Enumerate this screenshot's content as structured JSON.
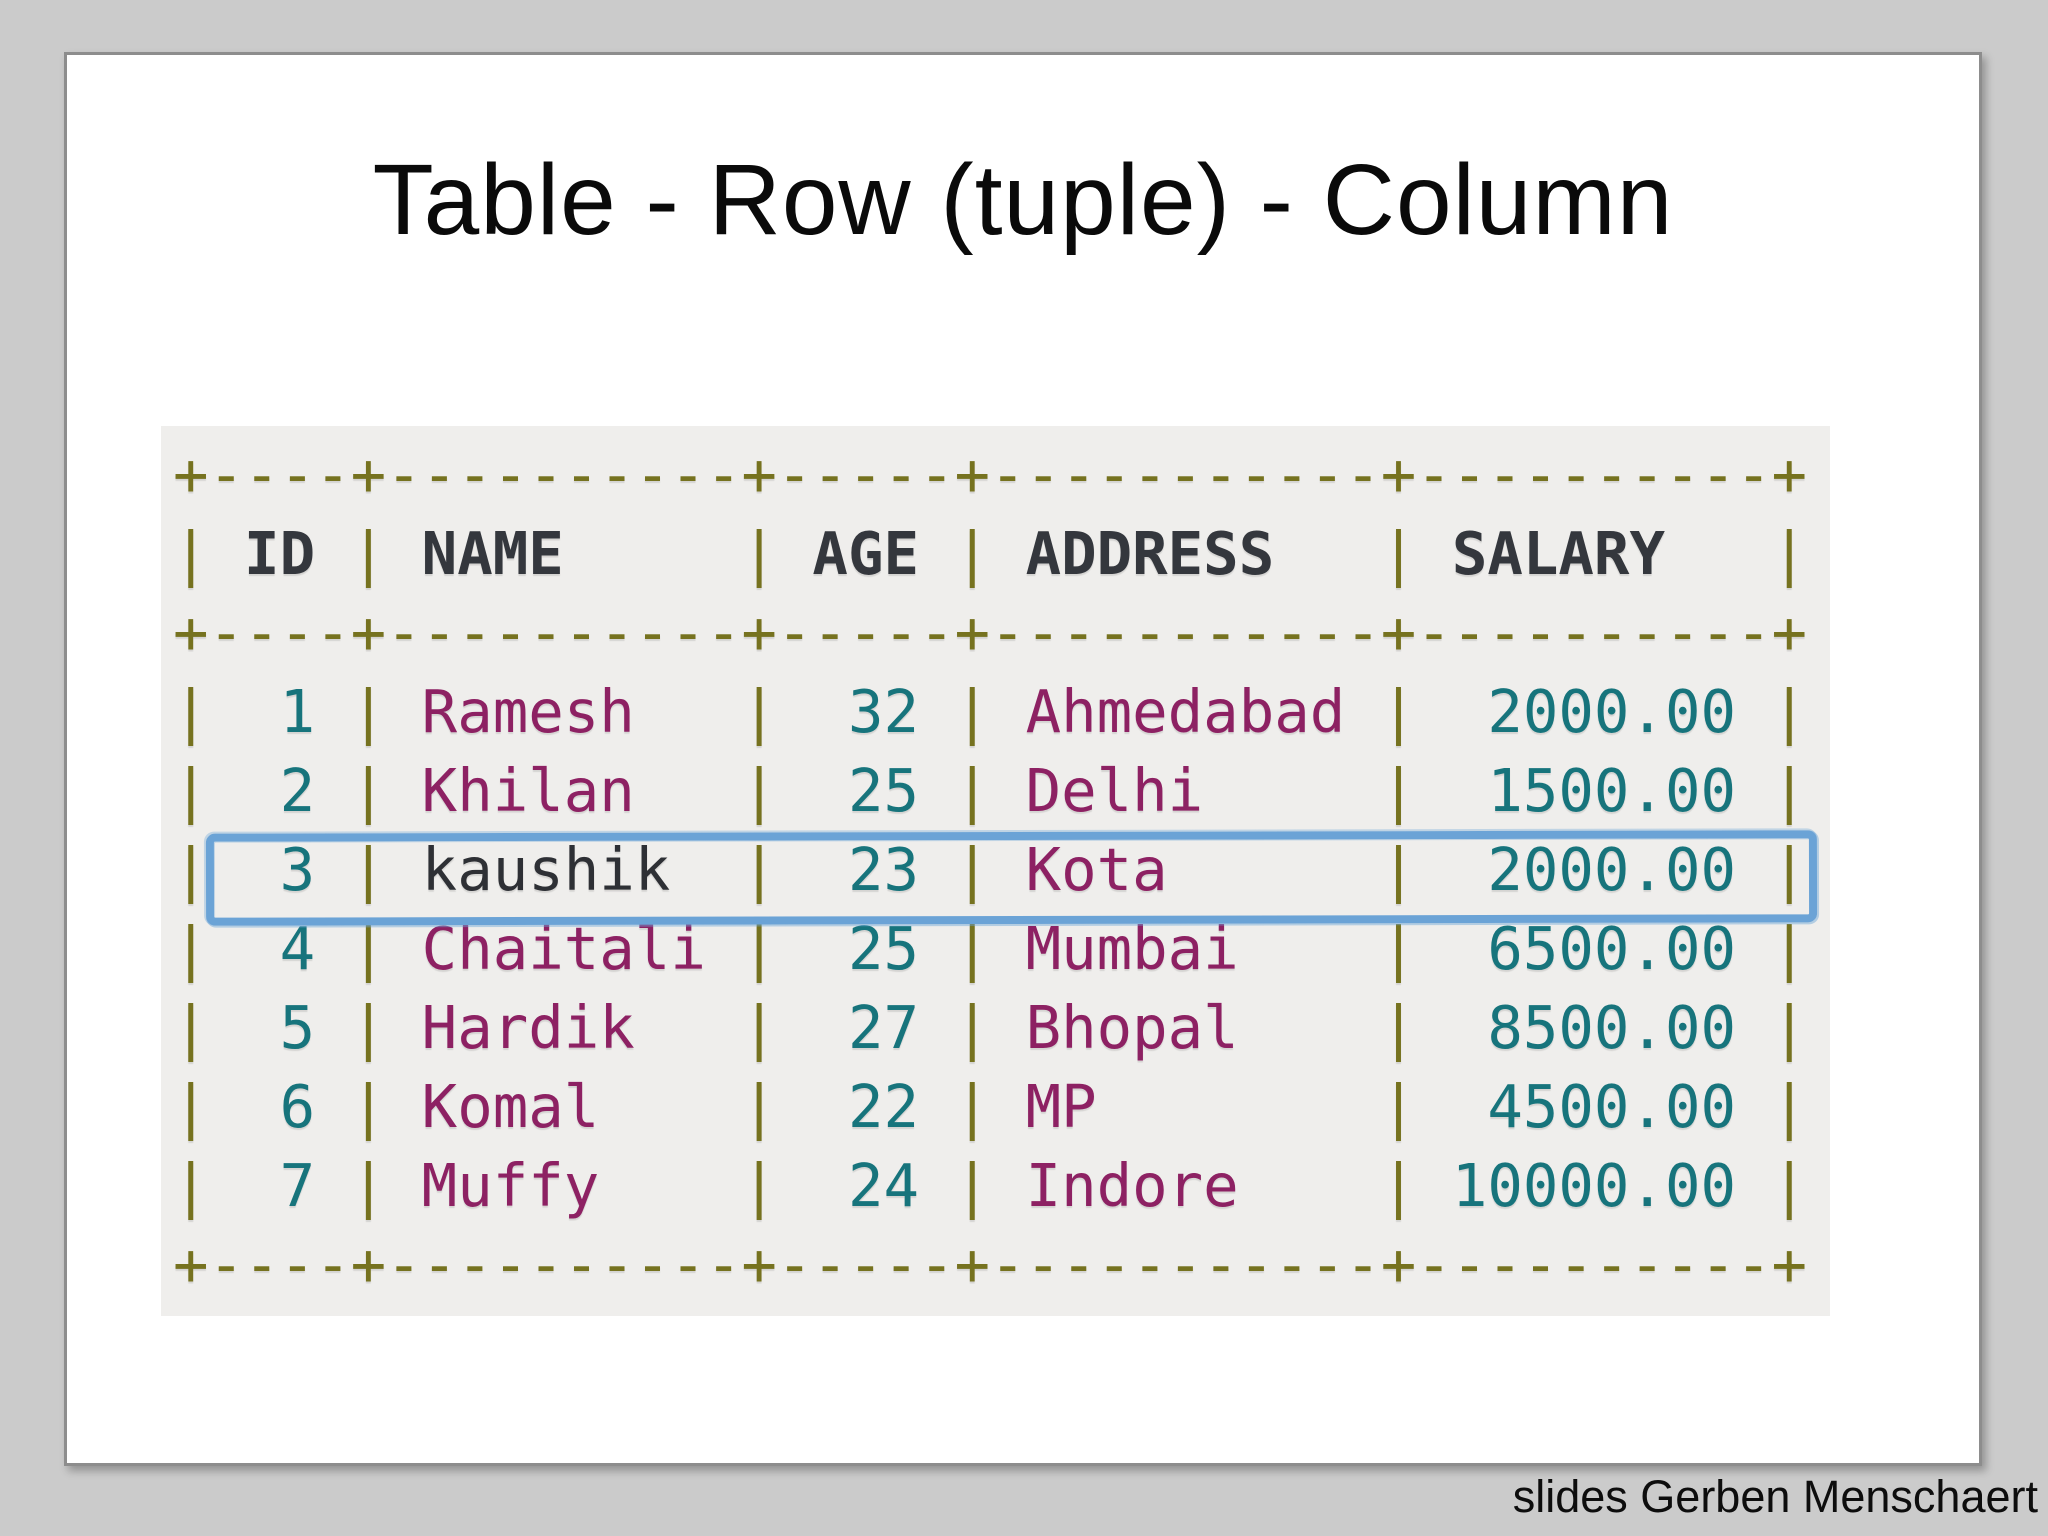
{
  "title": "Table - Row (tuple) - Column",
  "attribution": "slides Gerben Menschaert",
  "table": {
    "columns": [
      {
        "key": "id",
        "label": "ID",
        "width": 4,
        "type": "number"
      },
      {
        "key": "name",
        "label": "NAME",
        "width": 10,
        "type": "text"
      },
      {
        "key": "age",
        "label": "AGE",
        "width": 5,
        "type": "number"
      },
      {
        "key": "address",
        "label": "ADDRESS",
        "width": 11,
        "type": "text"
      },
      {
        "key": "salary",
        "label": "SALARY",
        "width": 10,
        "type": "number"
      }
    ],
    "rows": [
      {
        "id": "1",
        "name": "Ramesh",
        "age": "32",
        "address": "Ahmedabad",
        "salary": "2000.00"
      },
      {
        "id": "2",
        "name": "Khilan",
        "age": "25",
        "address": "Delhi",
        "salary": "1500.00"
      },
      {
        "id": "3",
        "name": "kaushik",
        "age": "23",
        "address": "Kota",
        "salary": "2000.00",
        "name_style": "plain"
      },
      {
        "id": "4",
        "name": "Chaitali",
        "age": "25",
        "address": "Mumbai",
        "salary": "6500.00"
      },
      {
        "id": "5",
        "name": "Hardik",
        "age": "27",
        "address": "Bhopal",
        "salary": "8500.00"
      },
      {
        "id": "6",
        "name": "Komal",
        "age": "22",
        "address": "MP",
        "salary": "4500.00"
      },
      {
        "id": "7",
        "name": "Muffy",
        "age": "24",
        "address": "Indore",
        "salary": "10000.00"
      }
    ],
    "highlighted_row_id": "3",
    "colors": {
      "border": "#76721f",
      "header": "#34373d",
      "number": "#17747c",
      "text_value": "#8d2163",
      "plain_value": "#2e3035",
      "highlight": "#6ba3d6",
      "box_bg": "#efeeec"
    }
  }
}
